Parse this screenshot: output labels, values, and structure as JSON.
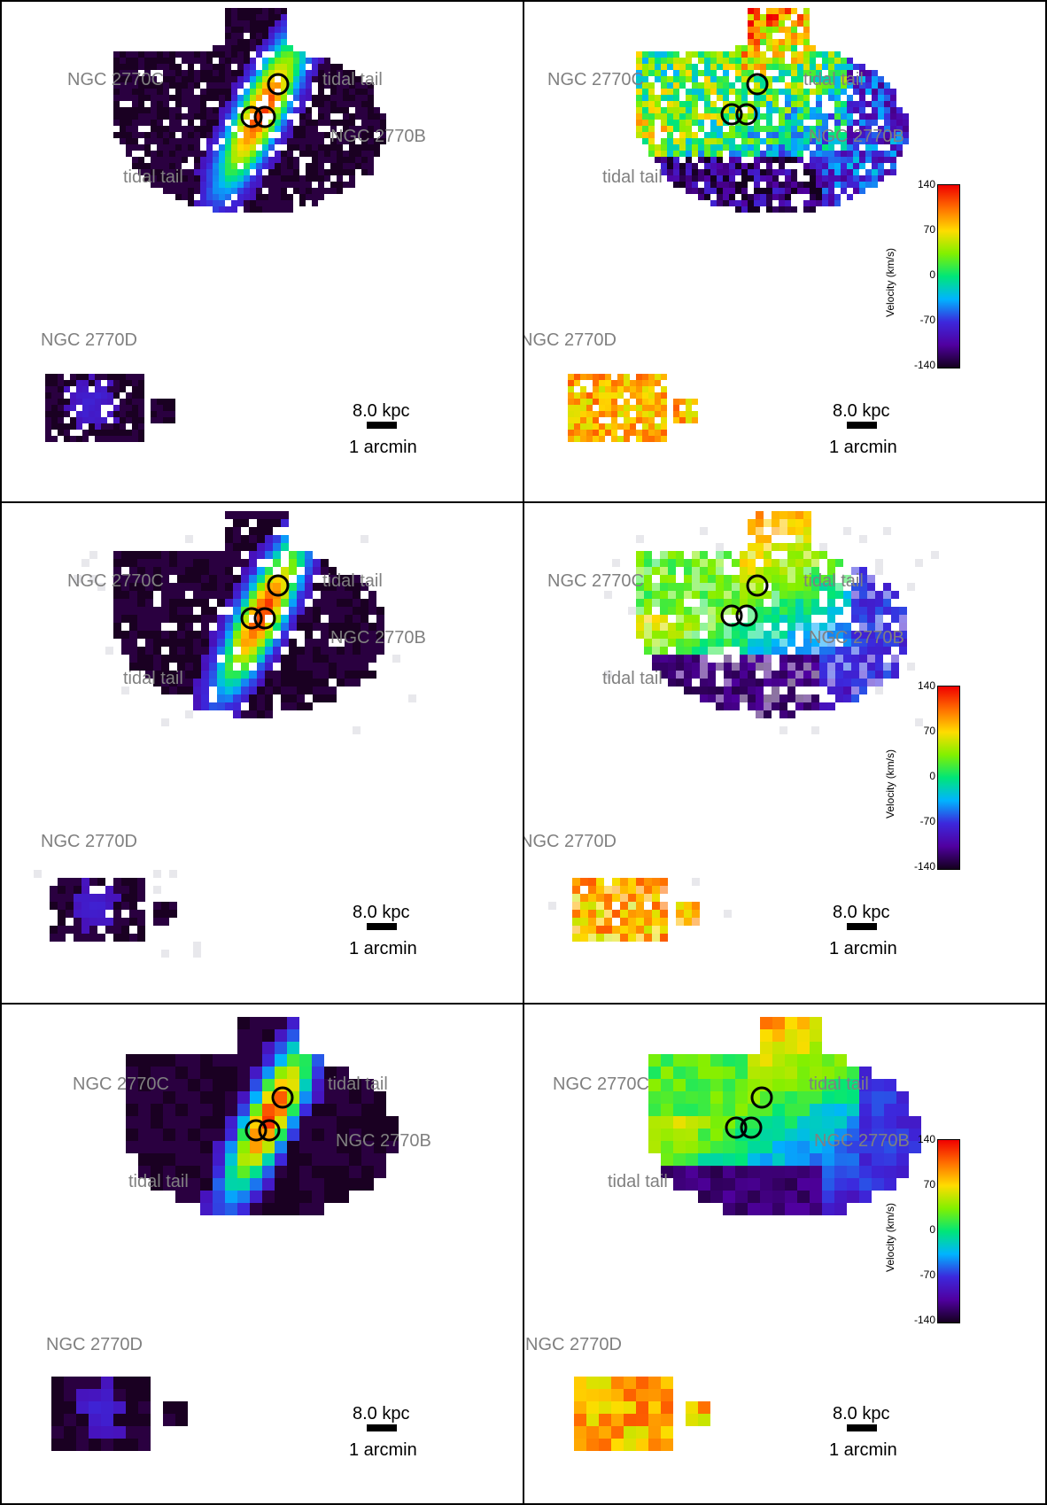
{
  "labels": {
    "galaxy_c": "NGC 2770C",
    "galaxy_b": "NGC 2770B",
    "galaxy_d": "NGC 2770D",
    "tail": "tidal tail"
  },
  "scale": {
    "kpc": "8.0 kpc",
    "arcmin": "1 arcmin"
  },
  "colorbar": {
    "title": "Velocity (km/s)",
    "ticks": [
      "140",
      "70",
      "0",
      "-70",
      "-140"
    ]
  },
  "colors": {
    "frame": "#000000",
    "label_gray": "#808080",
    "moment0_bg": "#220033"
  },
  "panels": [
    {
      "kind": "moment0",
      "style": "speckled"
    },
    {
      "kind": "velocity",
      "style": "speckled"
    },
    {
      "kind": "moment0",
      "style": "smooth"
    },
    {
      "kind": "velocity",
      "style": "smooth"
    },
    {
      "kind": "moment0",
      "style": "blocky"
    },
    {
      "kind": "velocity",
      "style": "blocky"
    }
  ]
}
